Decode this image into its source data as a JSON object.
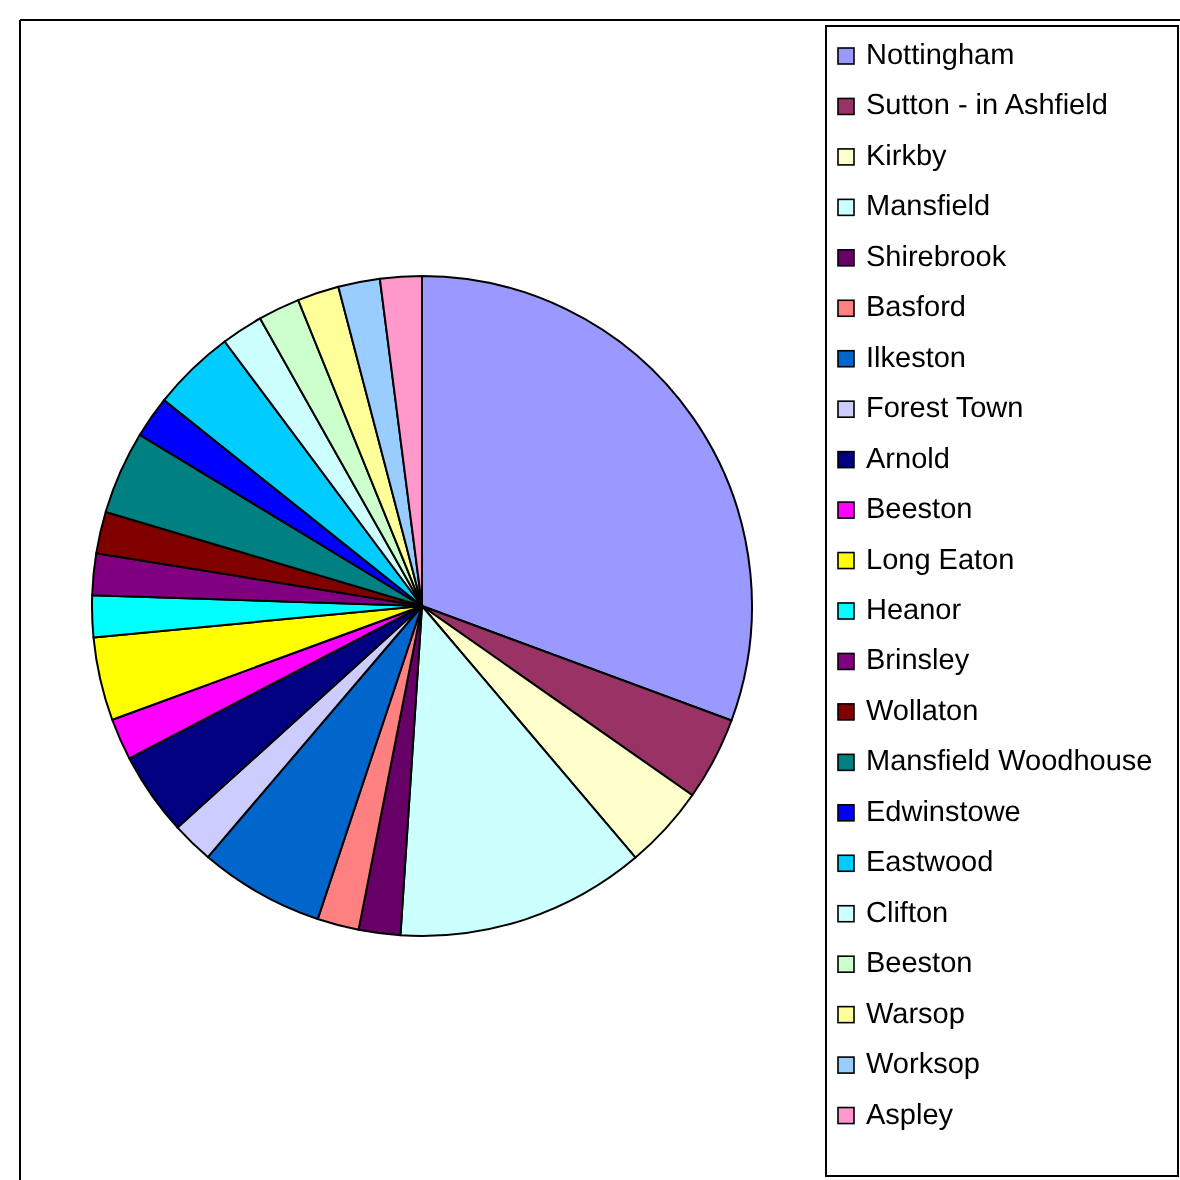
{
  "chart_data": {
    "type": "pie",
    "legend": "right",
    "categories": [
      "Nottingham",
      "Sutton - in Ashfield",
      "Kirkby",
      "Mansfield",
      "Shirebrook",
      "Basford",
      "Ilkeston",
      "Forest Town",
      "Arnold",
      "Beeston",
      "Long Eaton",
      "Heanor",
      "Brinsley",
      "Wollaton",
      "Mansfield Woodhouse",
      "Edwinstowe",
      "Eastwood",
      "Clifton",
      "Beeston",
      "Warsop",
      "Worksop",
      "Aspley"
    ],
    "values": [
      30.64,
      4.08,
      4.08,
      12.24,
      2.04,
      2.04,
      6.12,
      2.04,
      4.08,
      2.04,
      4.08,
      2.04,
      2.04,
      2.04,
      4.08,
      2.04,
      4.08,
      2.04,
      2.04,
      2.04,
      2.04,
      2.04
    ],
    "colors": [
      "#9999ff",
      "#993366",
      "#ffffcc",
      "#ccffff",
      "#660066",
      "#ff8080",
      "#0066cc",
      "#ccccff",
      "#000080",
      "#ff00ff",
      "#ffff00",
      "#00ffff",
      "#800080",
      "#800000",
      "#008080",
      "#0000ff",
      "#00ccff",
      "#ccffff",
      "#ccffcc",
      "#ffff99",
      "#99ccff",
      "#ff99cc"
    ]
  }
}
